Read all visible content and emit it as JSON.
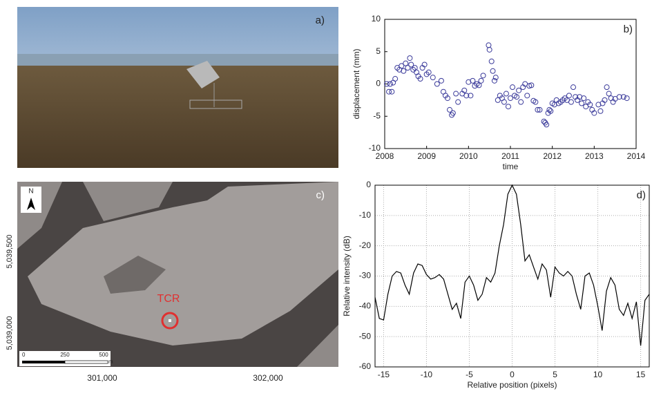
{
  "photo": {
    "label": "a)"
  },
  "map": {
    "label": "c)",
    "north": "N",
    "y_labels": [
      "5,039,500",
      "5,039,000"
    ],
    "x_labels": [
      "301,000",
      "302,000"
    ],
    "target": "TCR",
    "scale_labels": [
      "0",
      "250",
      "500"
    ],
    "scale_unit": "m"
  },
  "chart_data": [
    {
      "type": "scatter",
      "label": "b)",
      "x_label": "time",
      "y_label": "displacement (mm)",
      "color": "#3a3a9a",
      "xlim": [
        2008,
        2014
      ],
      "xticks": [
        2008,
        2009,
        2010,
        2011,
        2012,
        2013,
        2014
      ],
      "ylim": [
        -10,
        10
      ],
      "yticks": [
        -10,
        -5,
        0,
        5,
        10
      ],
      "grid": false,
      "x": [
        2008.05,
        2008.1,
        2008.13,
        2008.17,
        2008.2,
        2008.25,
        2008.3,
        2008.35,
        2008.4,
        2008.45,
        2008.5,
        2008.55,
        2008.6,
        2008.63,
        2008.68,
        2008.72,
        2008.76,
        2008.8,
        2008.85,
        2008.9,
        2008.95,
        2009.0,
        2009.05,
        2009.15,
        2009.25,
        2009.35,
        2009.4,
        2009.45,
        2009.5,
        2009.55,
        2009.6,
        2009.63,
        2009.7,
        2009.75,
        2009.85,
        2009.9,
        2009.95,
        2010.0,
        2010.05,
        2010.1,
        2010.15,
        2010.2,
        2010.25,
        2010.3,
        2010.35,
        2010.48,
        2010.5,
        2010.55,
        2010.58,
        2010.62,
        2010.65,
        2010.7,
        2010.75,
        2010.8,
        2010.85,
        2010.9,
        2010.95,
        2011.0,
        2011.05,
        2011.1,
        2011.15,
        2011.2,
        2011.25,
        2011.3,
        2011.35,
        2011.4,
        2011.45,
        2011.5,
        2011.55,
        2011.6,
        2011.65,
        2011.7,
        2011.8,
        2011.83,
        2011.86,
        2011.9,
        2011.93,
        2011.96,
        2012.0,
        2012.05,
        2012.1,
        2012.15,
        2012.2,
        2012.25,
        2012.3,
        2012.35,
        2012.4,
        2012.45,
        2012.5,
        2012.55,
        2012.6,
        2012.65,
        2012.7,
        2012.75,
        2012.8,
        2012.85,
        2012.9,
        2012.95,
        2013.0,
        2013.1,
        2013.15,
        2013.2,
        2013.25,
        2013.3,
        2013.35,
        2013.4,
        2013.45,
        2013.5,
        2013.6,
        2013.7,
        2013.78
      ],
      "values": [
        0,
        -1.2,
        0,
        -1.2,
        0.2,
        0.8,
        2.5,
        2.2,
        2.8,
        2,
        3.2,
        2.5,
        4,
        3,
        2.2,
        2.5,
        1.8,
        1.2,
        0.8,
        2.5,
        3,
        1.5,
        1.8,
        1,
        0,
        0.5,
        -1.2,
        -1.8,
        -2.2,
        -4,
        -4.8,
        -4.5,
        -1.5,
        -2.8,
        -1.5,
        -1,
        -1.8,
        0.3,
        -1.8,
        0.5,
        -0.3,
        0,
        -0.2,
        0.5,
        1.3,
        6,
        5.3,
        3.5,
        2,
        0.5,
        1,
        -2.5,
        -1.8,
        -2.2,
        -2.8,
        -1.5,
        -3.5,
        -2.2,
        -0.5,
        -1.8,
        -2,
        -1,
        -2.8,
        -0.5,
        0,
        -1.8,
        -0.3,
        -0.2,
        -2.6,
        -2.8,
        -4,
        -4,
        -5.8,
        -6,
        -6.3,
        -4.5,
        -4,
        -4.2,
        -3,
        -3.2,
        -2.5,
        -3,
        -2.8,
        -2.5,
        -2.2,
        -2.5,
        -1.8,
        -2.8,
        -0.5,
        -2,
        -2.5,
        -2,
        -3,
        -2.2,
        -3.5,
        -2.8,
        -3.2,
        -4,
        -4.5,
        -3.2,
        -4.2,
        -3,
        -2.5,
        -0.5,
        -1.5,
        -2.2,
        -2.8,
        -2.3,
        -2,
        -2,
        -2.2
      ]
    },
    {
      "type": "line",
      "label": "d)",
      "x_label": "Relative position (pixels)",
      "y_label": "Relative intensity (dB)",
      "color": "#000000",
      "xlim": [
        -16,
        16
      ],
      "xticks": [
        -15,
        -10,
        -5,
        0,
        5,
        10,
        15
      ],
      "ylim": [
        -60,
        0
      ],
      "yticks": [
        -60,
        -50,
        -40,
        -30,
        -20,
        -10,
        0
      ],
      "grid": true,
      "x": [
        -16,
        -15.5,
        -15,
        -14.5,
        -14,
        -13.5,
        -13,
        -12.5,
        -12,
        -11.5,
        -11,
        -10.5,
        -10,
        -9.5,
        -9,
        -8.5,
        -8,
        -7.5,
        -7,
        -6.5,
        -6,
        -5.5,
        -5,
        -4.5,
        -4,
        -3.5,
        -3,
        -2.5,
        -2,
        -1.5,
        -1,
        -0.5,
        0,
        0.5,
        1,
        1.5,
        2,
        2.5,
        3,
        3.5,
        4,
        4.5,
        5,
        5.5,
        6,
        6.5,
        7,
        7.5,
        8,
        8.5,
        9,
        9.5,
        10,
        10.5,
        11,
        11.5,
        12,
        12.5,
        13,
        13.5,
        14,
        14.5,
        15,
        15.5,
        16
      ],
      "values": [
        -37,
        -44,
        -44.5,
        -36,
        -30,
        -28.5,
        -29,
        -33,
        -36,
        -29,
        -26,
        -26.5,
        -29.5,
        -31,
        -30.5,
        -29.5,
        -31,
        -36,
        -41,
        -39,
        -44,
        -32,
        -30,
        -33,
        -38,
        -36,
        -30.5,
        -32,
        -29,
        -20,
        -13,
        -3,
        0,
        -3,
        -13,
        -25,
        -23,
        -27,
        -31,
        -26,
        -28,
        -37,
        -27,
        -29,
        -30,
        -28.5,
        -30,
        -36,
        -41,
        -30,
        -29,
        -33,
        -40,
        -48,
        -35,
        -30.5,
        -33,
        -41,
        -43,
        -39,
        -44,
        -38.5,
        -53,
        -38,
        -36
      ]
    }
  ]
}
